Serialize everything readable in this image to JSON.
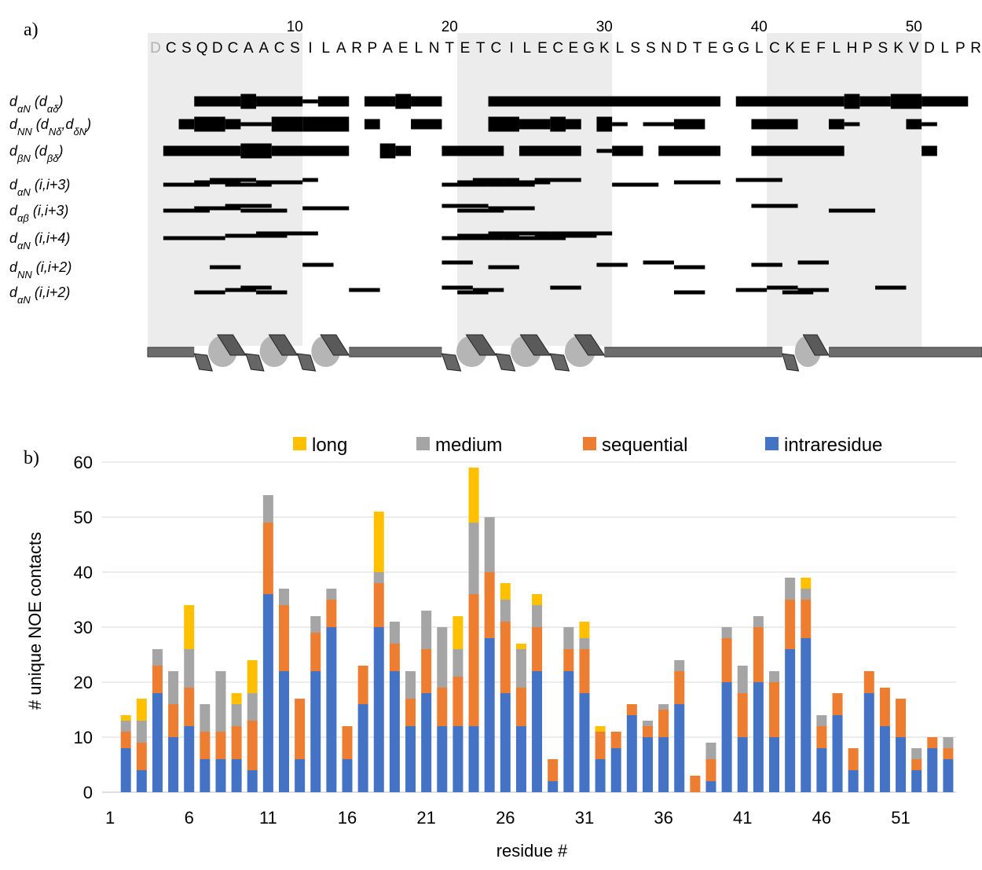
{
  "panel_a": {
    "panel_label": "a)",
    "sequence": [
      "D",
      "C",
      "S",
      "Q",
      "D",
      "C",
      "A",
      "A",
      "C",
      "S",
      "I",
      "L",
      "A",
      "R",
      "P",
      "A",
      "E",
      "L",
      "N",
      "T",
      "E",
      "T",
      "C",
      "I",
      "L",
      "E",
      "C",
      "E",
      "G",
      "K",
      "L",
      "S",
      "S",
      "N",
      "D",
      "T",
      "E",
      "G",
      "G",
      "L",
      "C",
      "K",
      "E",
      "F",
      "L",
      "H",
      "P",
      "S",
      "K",
      "V",
      "D",
      "L",
      "P",
      "R"
    ],
    "sequence_numbers": [
      10,
      20,
      30,
      40,
      50
    ],
    "shaded": [
      [
        0.5,
        10.5
      ],
      [
        20.5,
        30.5
      ],
      [
        40.5,
        50.5
      ]
    ],
    "helices": [
      [
        3.5,
        13.5
      ],
      [
        19.5,
        30
      ],
      [
        41.5,
        44.5
      ]
    ],
    "rows": [
      {
        "label": [
          "d",
          "αN",
          " (d",
          "αδ",
          ")"
        ],
        "bars": [
          [
            3.5,
            6.5,
            2
          ],
          [
            6.5,
            7.5,
            3
          ],
          [
            7.5,
            10.5,
            2
          ],
          [
            10.5,
            11.5,
            1
          ],
          [
            11.5,
            13.5,
            2
          ],
          [
            14.5,
            16.5,
            2
          ],
          [
            16.5,
            17.5,
            3
          ],
          [
            17.5,
            19.5,
            2
          ],
          [
            22.5,
            37.5,
            2
          ],
          [
            38.5,
            45.5,
            2
          ],
          [
            45.5,
            46.5,
            3
          ],
          [
            46.5,
            48.5,
            2
          ],
          [
            48.5,
            50.5,
            3
          ],
          [
            50.5,
            53.5,
            2
          ]
        ]
      },
      {
        "label": [
          "d",
          "NN",
          " (d",
          "Nδ",
          ",d",
          "δN",
          ")"
        ],
        "bars": [
          [
            2.5,
            3.5,
            2
          ],
          [
            3.5,
            5.5,
            3
          ],
          [
            5.5,
            6.5,
            2
          ],
          [
            6.5,
            8.5,
            1
          ],
          [
            8.5,
            10.5,
            3
          ],
          [
            10.5,
            13.5,
            3
          ],
          [
            14.5,
            15.5,
            2
          ],
          [
            17.5,
            19.5,
            2
          ],
          [
            22.5,
            24.5,
            3
          ],
          [
            24.5,
            26.5,
            2
          ],
          [
            26.5,
            27.5,
            3
          ],
          [
            27.5,
            28.5,
            2
          ],
          [
            29.5,
            30.5,
            3
          ],
          [
            30.5,
            31.5,
            1
          ],
          [
            32.5,
            34.5,
            1
          ],
          [
            34.5,
            36.5,
            2
          ],
          [
            39.5,
            42.5,
            2
          ],
          [
            44.5,
            45.5,
            2
          ],
          [
            45.5,
            46.5,
            1
          ],
          [
            49.5,
            50.5,
            2
          ],
          [
            50.5,
            51.5,
            1
          ]
        ]
      },
      {
        "label": [
          "d",
          "βN",
          " (d",
          "βδ",
          ")"
        ],
        "bars": [
          [
            1.5,
            6.5,
            2
          ],
          [
            6.5,
            8.5,
            3
          ],
          [
            8.5,
            13.5,
            2
          ],
          [
            15.5,
            16.5,
            3
          ],
          [
            16.5,
            17.5,
            2
          ],
          [
            19.5,
            23.5,
            2
          ],
          [
            24.5,
            28.5,
            2
          ],
          [
            29.5,
            30.5,
            1
          ],
          [
            30.5,
            32.5,
            2
          ],
          [
            33.5,
            37.5,
            2
          ],
          [
            39.5,
            45.5,
            2
          ],
          [
            50.5,
            51.5,
            2
          ]
        ]
      },
      {
        "label": [
          "d",
          "αN",
          " (i,i+3)"
        ],
        "bars": [
          [
            1.5,
            4.5,
            1
          ],
          [
            3.5,
            6.5,
            1
          ],
          [
            4.5,
            7.5,
            1
          ],
          [
            5.5,
            8.5,
            1
          ],
          [
            7.5,
            10.5,
            1
          ],
          [
            10.5,
            11.5,
            1
          ],
          [
            19.5,
            22.5,
            1
          ],
          [
            20.5,
            23.5,
            1
          ],
          [
            21.5,
            24.5,
            1
          ],
          [
            22.5,
            25.5,
            1
          ],
          [
            23.5,
            26.5,
            1
          ],
          [
            25.5,
            28.5,
            1
          ],
          [
            30.5,
            33.5,
            1
          ],
          [
            34.5,
            37.5,
            1
          ],
          [
            38.5,
            41.5,
            1
          ]
        ]
      },
      {
        "label": [
          "d",
          "αβ",
          " (i,i+3)"
        ],
        "bars": [
          [
            1.5,
            4.5,
            1
          ],
          [
            3.5,
            6.5,
            1
          ],
          [
            5.5,
            8.5,
            1
          ],
          [
            6.5,
            9.5,
            1
          ],
          [
            10.5,
            13.5,
            1
          ],
          [
            19.5,
            22.5,
            1
          ],
          [
            20.5,
            23.5,
            1
          ],
          [
            22.5,
            25.5,
            1
          ],
          [
            39.5,
            42.5,
            1
          ],
          [
            44.5,
            47.5,
            1
          ]
        ]
      },
      {
        "label": [
          "d",
          "αN",
          " (i,i+4)"
        ],
        "bars": [
          [
            1.5,
            5.5,
            1
          ],
          [
            5.5,
            9.5,
            1
          ],
          [
            7.5,
            11.5,
            1
          ],
          [
            19.5,
            23.5,
            1
          ],
          [
            20.5,
            24.5,
            1
          ],
          [
            22.5,
            26.5,
            1
          ],
          [
            23.5,
            27.5,
            1
          ],
          [
            25.5,
            29.5,
            1
          ],
          [
            26.5,
            30.5,
            1
          ]
        ]
      },
      {
        "label": [
          "d",
          "NN",
          " (i,i+2)"
        ],
        "bars": [
          [
            4.5,
            6.5,
            1
          ],
          [
            10.5,
            12.5,
            1
          ],
          [
            19.5,
            21.5,
            1
          ],
          [
            22.5,
            24.5,
            1
          ],
          [
            29.5,
            31.5,
            1
          ],
          [
            32.5,
            34.5,
            1
          ],
          [
            34.5,
            36.5,
            1
          ],
          [
            39.5,
            41.5,
            1
          ],
          [
            42.5,
            44.5,
            1
          ]
        ]
      },
      {
        "label": [
          "d",
          "αN",
          " (i,i+2)"
        ],
        "bars": [
          [
            3.5,
            5.5,
            1
          ],
          [
            5.5,
            7.5,
            1
          ],
          [
            6.5,
            8.5,
            1
          ],
          [
            7.5,
            9.5,
            1
          ],
          [
            13.5,
            15.5,
            1
          ],
          [
            19.5,
            21.5,
            1
          ],
          [
            20.5,
            22.5,
            1
          ],
          [
            21.5,
            23.5,
            1
          ],
          [
            26.5,
            28.5,
            1
          ],
          [
            34.5,
            36.5,
            1
          ],
          [
            38.5,
            40.5,
            1
          ],
          [
            40.5,
            42.5,
            1
          ],
          [
            41.5,
            43.5,
            1
          ],
          [
            42.5,
            44.5,
            1
          ],
          [
            47.5,
            49.5,
            1
          ]
        ]
      }
    ]
  },
  "chart_data": {
    "type": "stacked_bar",
    "panel_label": "b)",
    "xlabel": "residue #",
    "ylabel": "# unique NOE contacts",
    "categories": [
      1,
      null,
      null,
      null,
      null,
      6,
      null,
      null,
      null,
      null,
      11,
      null,
      null,
      null,
      null,
      16,
      null,
      null,
      null,
      null,
      21,
      null,
      null,
      null,
      null,
      26,
      null,
      null,
      null,
      null,
      31,
      null,
      null,
      null,
      null,
      36,
      null,
      null,
      null,
      null,
      41,
      null,
      null,
      null,
      null,
      46,
      null,
      null,
      null,
      null,
      51,
      null,
      null,
      null
    ],
    "series": [
      {
        "name": "intraresidue",
        "color": "#4472c4",
        "values": [
          0,
          8,
          4,
          18,
          10,
          12,
          6,
          6,
          6,
          4,
          36,
          22,
          6,
          22,
          30,
          6,
          16,
          30,
          22,
          12,
          18,
          12,
          12,
          12,
          28,
          18,
          12,
          22,
          2,
          22,
          18,
          6,
          8,
          14,
          10,
          10,
          16,
          0,
          2,
          20,
          10,
          20,
          10,
          26,
          28,
          8,
          14,
          4,
          18,
          12,
          10,
          4,
          8,
          6
        ]
      },
      {
        "name": "sequential",
        "color": "#ed7d31",
        "values": [
          0,
          3,
          5,
          5,
          6,
          7,
          5,
          5,
          6,
          9,
          13,
          12,
          11,
          7,
          5,
          6,
          7,
          8,
          5,
          5,
          8,
          7,
          9,
          24,
          12,
          13,
          7,
          8,
          4,
          4,
          8,
          5,
          3,
          2,
          2,
          5,
          6,
          3,
          4,
          8,
          8,
          10,
          10,
          9,
          7,
          4,
          4,
          4,
          4,
          7,
          7,
          2,
          2,
          2
        ]
      },
      {
        "name": "medium",
        "color": "#a5a5a5",
        "values": [
          0,
          2,
          4,
          3,
          6,
          7,
          5,
          11,
          4,
          5,
          5,
          3,
          0,
          3,
          2,
          0,
          0,
          2,
          4,
          5,
          7,
          11,
          5,
          13,
          10,
          4,
          7,
          4,
          0,
          4,
          2,
          0,
          0,
          0,
          1,
          1,
          2,
          0,
          3,
          2,
          5,
          2,
          2,
          4,
          2,
          2,
          0,
          0,
          0,
          0,
          0,
          2,
          0,
          2
        ]
      },
      {
        "name": "long",
        "color": "#ffc000",
        "values": [
          0,
          1,
          4,
          0,
          0,
          8,
          0,
          0,
          2,
          6,
          0,
          0,
          0,
          0,
          0,
          0,
          0,
          11,
          0,
          0,
          0,
          0,
          6,
          10,
          0,
          3,
          1,
          2,
          0,
          0,
          3,
          1,
          0,
          0,
          0,
          0,
          0,
          0,
          0,
          0,
          0,
          0,
          0,
          0,
          2,
          0,
          0,
          0,
          0,
          0,
          0,
          0,
          0,
          0
        ]
      }
    ],
    "ylim": [
      0,
      60
    ],
    "yticks": [
      0,
      10,
      20,
      30,
      40,
      50,
      60
    ],
    "grid": true,
    "legend": "top"
  }
}
